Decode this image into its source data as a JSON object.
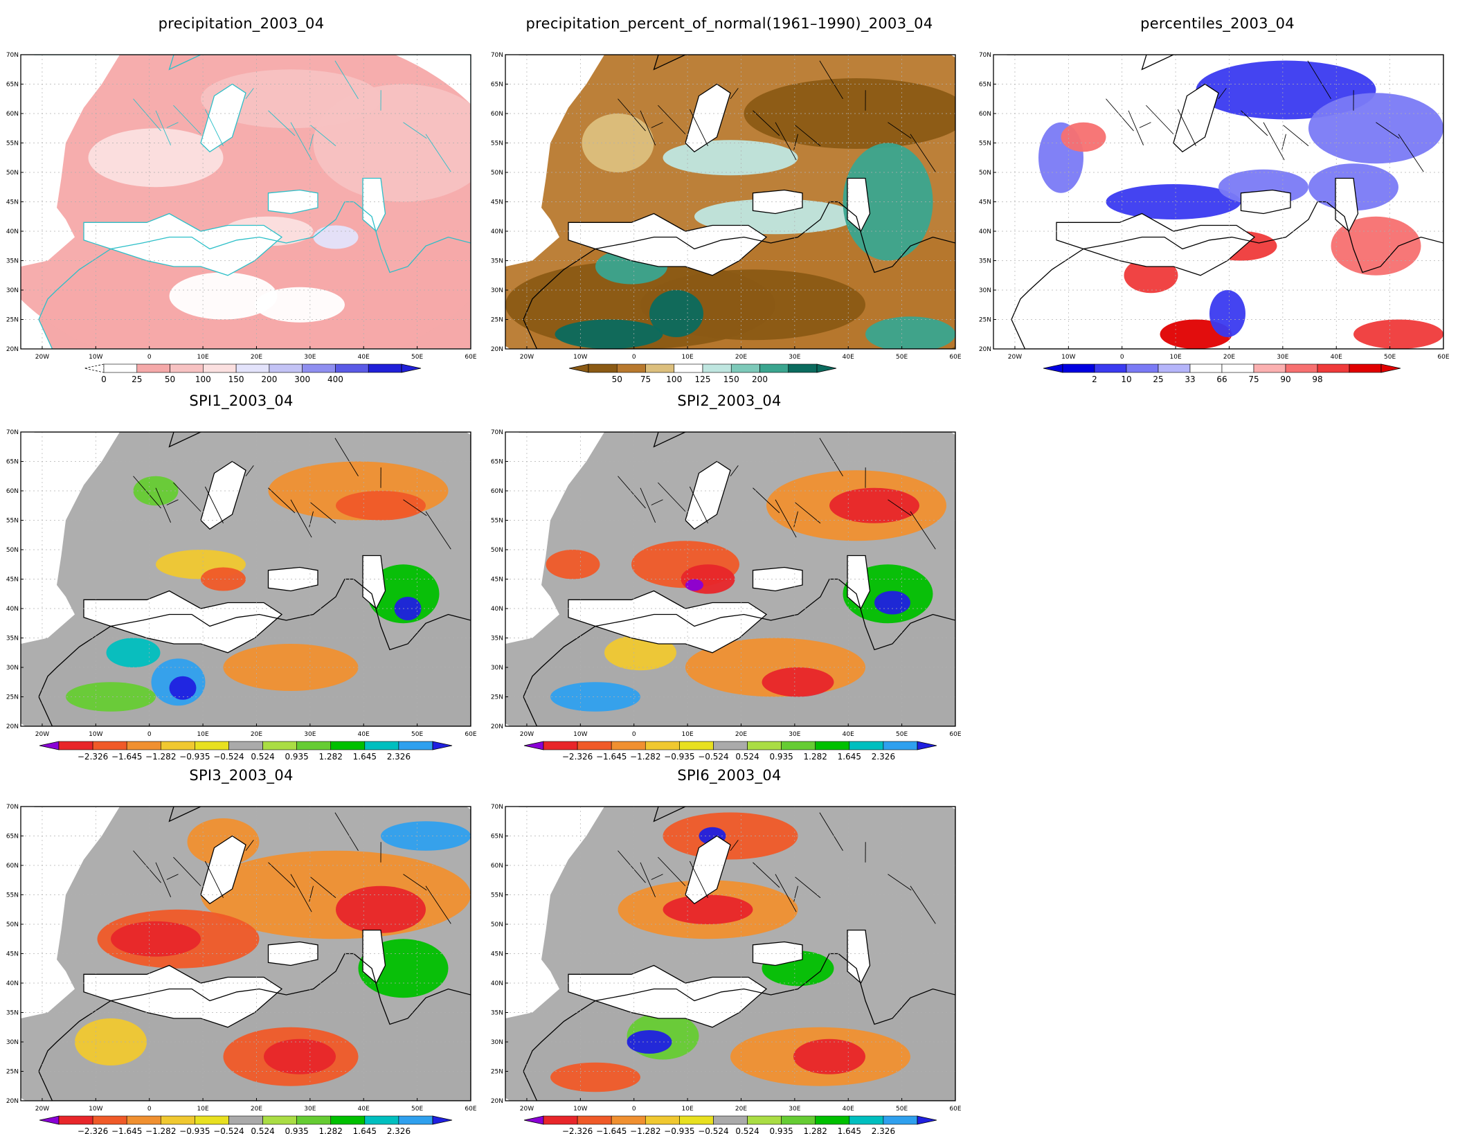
{
  "figure": {
    "panels": [
      {
        "id": "precip",
        "title": "precipitation_2003_04",
        "scheme": "pink",
        "colorbar": {
          "colors": [
            "#ffffff",
            "#f5a9a9",
            "#f7c2c2",
            "#fbe0e0",
            "#e3e3fb",
            "#c3c3f5",
            "#8f8ff0",
            "#5a5ae6",
            "#2020d8"
          ],
          "labels": [
            "0",
            "25",
            "50",
            "100",
            "150",
            "200",
            "300",
            "400"
          ],
          "left_arrow": "dashed"
        }
      },
      {
        "id": "pct",
        "title": "precipitation_percent_of_normal(1961–1990)_2003_04",
        "scheme": "brown",
        "colorbar": {
          "colors": [
            "#8b5a14",
            "#b8792e",
            "#dcbf7d",
            "#ffffff",
            "#bfe6e0",
            "#7dc9b9",
            "#3aa58f",
            "#0b6b5e"
          ],
          "labels": [
            "50",
            "75",
            "100",
            "125",
            "150",
            "200"
          ]
        }
      },
      {
        "id": "perc",
        "title": "percentiles_2003_04",
        "scheme": "pctl",
        "colorbar": {
          "colors": [
            "#0000e0",
            "#3a3af0",
            "#7a7af5",
            "#b5b5fa",
            "#ffffff",
            "#ffffff",
            "#fbb0b0",
            "#f77070",
            "#ef3a3a",
            "#e00000"
          ],
          "labels": [
            "2",
            "10",
            "25",
            "33",
            "66",
            "75",
            "90",
            "98"
          ]
        }
      },
      {
        "id": "spi1",
        "title": "SPI1_2003_04",
        "scheme": "spi"
      },
      {
        "id": "spi2",
        "title": "SPI2_2003_04",
        "scheme": "spi"
      },
      {
        "id": "spi3",
        "title": "SPI3_2003_04",
        "scheme": "spi"
      },
      {
        "id": "spi6",
        "title": "SPI6_2003_04",
        "scheme": "spi"
      }
    ],
    "spi_colorbar": {
      "colors": [
        "#8a00d6",
        "#e8262a",
        "#f05a28",
        "#f09030",
        "#f0c830",
        "#e8e020",
        "#aaaaaa",
        "#aadd44",
        "#66cc33",
        "#00c000",
        "#00bfbf",
        "#2fa0ee",
        "#2020e0"
      ],
      "labels": [
        "−2.326",
        "−1.645",
        "−1.282",
        "−0.935",
        "−0.524",
        "0.524",
        "0.935",
        "1.282",
        "1.645",
        "2.326"
      ]
    },
    "lat_labels": [
      "70N",
      "65N",
      "60N",
      "55N",
      "50N",
      "45N",
      "40N",
      "35N",
      "30N",
      "25N",
      "20N"
    ],
    "lon_labels": [
      "20W",
      "10W",
      "0",
      "10E",
      "20E",
      "30E",
      "40E",
      "50E",
      "60E"
    ]
  }
}
